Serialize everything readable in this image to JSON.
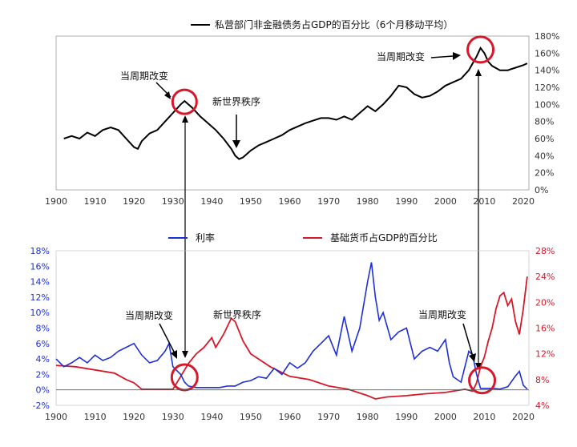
{
  "chart_data": [
    {
      "type": "line",
      "title": "私营部门非金融债务占GDP的百分比（6个月移动平均）",
      "x_ticks": [
        "1900",
        "1910",
        "1920",
        "1930",
        "1940",
        "1950",
        "1960",
        "1970",
        "1980",
        "1990",
        "2000",
        "2010",
        "2020"
      ],
      "y_ticks": [
        "0%",
        "20%",
        "40%",
        "60%",
        "80%",
        "100%",
        "120%",
        "140%",
        "160%",
        "180%"
      ],
      "xlim": [
        1900,
        2024
      ],
      "ylim": [
        0,
        180
      ],
      "grid": false,
      "series": [
        {
          "name": "私营部门非金融债务占GDP的百分比（6个月移动平均）",
          "color": "#000000",
          "x": [
            1902,
            1904,
            1906,
            1908,
            1910,
            1912,
            1914,
            1916,
            1918,
            1920,
            1921,
            1922,
            1924,
            1926,
            1928,
            1930,
            1932,
            1933,
            1935,
            1937,
            1939,
            1941,
            1943,
            1945,
            1946,
            1947,
            1948,
            1950,
            1952,
            1954,
            1956,
            1958,
            1960,
            1962,
            1964,
            1966,
            1968,
            1970,
            1972,
            1974,
            1976,
            1978,
            1980,
            1982,
            1984,
            1986,
            1988,
            1990,
            1992,
            1994,
            1996,
            1998,
            2000,
            2002,
            2004,
            2006,
            2007,
            2008,
            2009,
            2010,
            2011,
            2012,
            2014,
            2016,
            2018,
            2020,
            2021
          ],
          "y": [
            60,
            63,
            60,
            67,
            63,
            70,
            73,
            70,
            60,
            50,
            48,
            57,
            66,
            70,
            80,
            90,
            100,
            104,
            96,
            86,
            78,
            70,
            60,
            48,
            40,
            36,
            38,
            46,
            52,
            56,
            60,
            64,
            70,
            74,
            78,
            81,
            84,
            84,
            82,
            86,
            82,
            90,
            98,
            92,
            100,
            110,
            122,
            120,
            112,
            108,
            110,
            115,
            122,
            126,
            130,
            140,
            148,
            156,
            166,
            160,
            150,
            145,
            140,
            140,
            143,
            146,
            148
          ]
        }
      ],
      "annotations": [
        {
          "text": "当周期改变",
          "at": [
            1933,
            104
          ]
        },
        {
          "text": "新世界秩序",
          "at": [
            1947,
            36
          ]
        },
        {
          "text": "当周期改变",
          "at": [
            2009,
            166
          ]
        }
      ]
    },
    {
      "type": "line",
      "x_ticks": [
        "1900",
        "1910",
        "1920",
        "1930",
        "1940",
        "1950",
        "1960",
        "1970",
        "1980",
        "1990",
        "2000",
        "2010",
        "2020"
      ],
      "y_left_ticks": [
        "-2%",
        "0%",
        "2%",
        "4%",
        "6%",
        "8%",
        "10%",
        "12%",
        "14%",
        "16%",
        "18%"
      ],
      "y_right_ticks": [
        "4%",
        "8%",
        "12%",
        "16%",
        "20%",
        "24%",
        "28%"
      ],
      "xlim": [
        1900,
        2024
      ],
      "ylim_left": [
        -2,
        18
      ],
      "ylim_right": [
        4,
        28
      ],
      "grid": false,
      "legend": "top",
      "series": [
        {
          "name": "利率",
          "axis": "left",
          "color": "#1f2fd6",
          "x": [
            1900,
            1902,
            1904,
            1906,
            1908,
            1910,
            1912,
            1914,
            1916,
            1918,
            1920,
            1922,
            1924,
            1926,
            1928,
            1929,
            1930,
            1931,
            1932,
            1933,
            1934,
            1936,
            1938,
            1940,
            1942,
            1944,
            1946,
            1948,
            1950,
            1952,
            1954,
            1956,
            1958,
            1960,
            1962,
            1964,
            1966,
            1968,
            1970,
            1972,
            1974,
            1976,
            1978,
            1980,
            1981,
            1982,
            1983,
            1984,
            1986,
            1988,
            1990,
            1992,
            1994,
            1996,
            1998,
            2000,
            2001,
            2002,
            2004,
            2006,
            2007,
            2008,
            2009,
            2010,
            2012,
            2014,
            2016,
            2018,
            2019,
            2020,
            2021
          ],
          "y": [
            4,
            3,
            3.5,
            4.2,
            3.5,
            4.5,
            3.8,
            4.2,
            5.0,
            5.5,
            6.0,
            4.5,
            3.5,
            3.8,
            5.0,
            6.0,
            3.0,
            2.5,
            2.0,
            1.0,
            0.5,
            0.3,
            0.3,
            0.3,
            0.3,
            0.5,
            0.5,
            1.0,
            1.2,
            1.7,
            1.5,
            2.8,
            2.0,
            3.5,
            2.8,
            3.5,
            5.0,
            6.0,
            7.0,
            4.5,
            9.5,
            5.0,
            8.0,
            14.0,
            16.5,
            12.0,
            9.0,
            10.0,
            6.5,
            7.5,
            8.0,
            4.0,
            5.0,
            5.5,
            5.0,
            6.5,
            3.5,
            1.7,
            1.0,
            5.0,
            4.5,
            2.0,
            0.2,
            0.2,
            0.2,
            0.1,
            0.4,
            1.8,
            2.4,
            0.6,
            0.1
          ]
        },
        {
          "name": "基础货币占GDP的百分比",
          "axis": "right",
          "color": "#d6192a",
          "x": [
            1900,
            1905,
            1910,
            1915,
            1918,
            1920,
            1922,
            1925,
            1930,
            1932,
            1933,
            1934,
            1936,
            1938,
            1940,
            1941,
            1943,
            1945,
            1946,
            1948,
            1950,
            1955,
            1960,
            1965,
            1970,
            1975,
            1980,
            1982,
            1985,
            1990,
            1995,
            2000,
            2005,
            2007,
            2008,
            2009,
            2010,
            2011,
            2012,
            2013,
            2014,
            2015,
            2016,
            2017,
            2018,
            2019,
            2020,
            2021
          ],
          "y": [
            10.2,
            10,
            9.5,
            9.0,
            8.0,
            7.5,
            6.5,
            6.5,
            6.5,
            8.5,
            9.5,
            10.5,
            12,
            13,
            14.5,
            13,
            15,
            17.5,
            17,
            14,
            12,
            10,
            8.5,
            8,
            7,
            6.5,
            5.5,
            5.0,
            5.3,
            5.5,
            5.8,
            6.0,
            6.5,
            6.2,
            7.5,
            10,
            11.5,
            14,
            16,
            19,
            21,
            21.5,
            19.5,
            20.5,
            17,
            15,
            19,
            24
          ]
        }
      ],
      "annotations": [
        {
          "text": "当周期改变",
          "at": [
            1933,
            1.0
          ]
        },
        {
          "text": "新世界秩序",
          "at": [
            1946,
            8.0
          ]
        },
        {
          "text": "当周期改变",
          "at": [
            2009,
            0.2
          ]
        }
      ]
    }
  ]
}
